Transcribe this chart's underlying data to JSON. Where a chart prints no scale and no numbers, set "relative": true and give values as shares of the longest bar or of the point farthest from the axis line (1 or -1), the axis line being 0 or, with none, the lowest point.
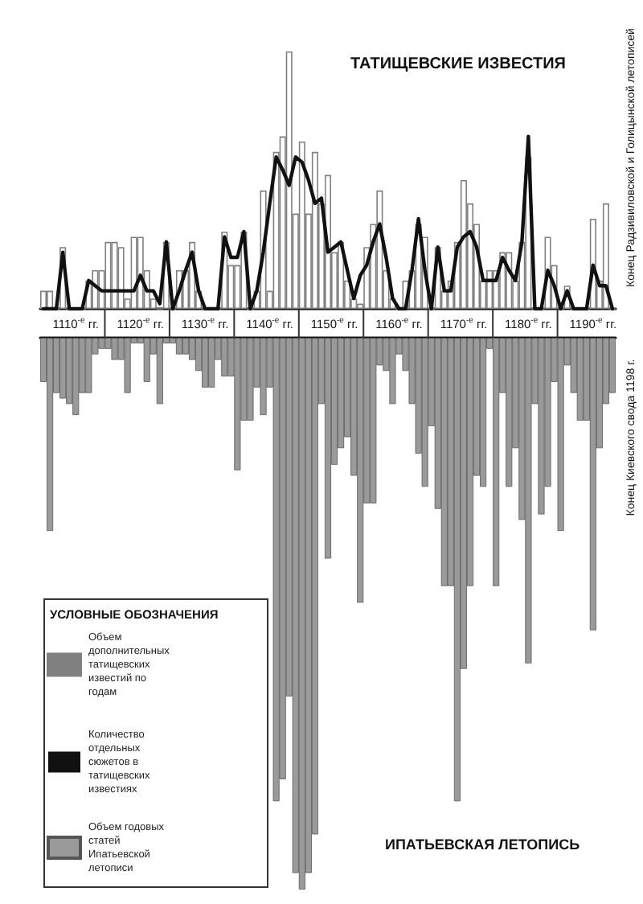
{
  "chart_data": [
    {
      "type": "bar",
      "relative": true,
      "categories": [
        null,
        null,
        null,
        null,
        null,
        "1110$^{-е}$ гг.",
        null,
        null,
        null,
        null,
        null,
        null,
        null,
        null,
        null,
        "1120$^{-е}$ гг.",
        null,
        null,
        null,
        null,
        null,
        null,
        null,
        null,
        null,
        "1130$^{-е}$ гг.",
        null,
        null,
        null,
        null,
        null,
        null,
        null,
        null,
        null,
        "1140$^{-е}$ гг.",
        null,
        null,
        null,
        null,
        null,
        null,
        null,
        null,
        null,
        "1150$^{-е}$ гг.",
        null,
        null,
        null,
        null,
        null,
        null,
        null,
        null,
        null,
        "1160$^{-е}$ гг.",
        null,
        null,
        null,
        null,
        null,
        null,
        null,
        null,
        null,
        "1170$^{-е}$ гг.",
        null,
        null,
        null,
        null,
        null,
        null,
        null,
        null,
        null,
        "1180$^{-е}$ гг.",
        null,
        null,
        null,
        null,
        null,
        null,
        null,
        null,
        null,
        "1190$^{-е}$ гг.",
        null,
        null,
        null
      ],
      "series": [
        {
          "name": "Объем дополнительных татищевских известий по годам",
          "color": "#808080",
          "values": [
            0.07,
            0.07,
            0,
            0.24,
            0,
            0,
            0,
            0.11,
            0.15,
            0.15,
            0.26,
            0.26,
            0.24,
            0.04,
            0.28,
            0.28,
            0.15,
            0.04,
            0,
            0.26,
            0,
            0.15,
            0.15,
            0.26,
            0.07,
            0,
            0,
            0,
            0.3,
            0.17,
            0.17,
            0.3,
            0,
            0.07,
            0.46,
            0.07,
            0.61,
            0.67,
            1,
            0.37,
            0.65,
            0.37,
            0.61,
            0.41,
            0.52,
            0.22,
            0.26,
            0.11,
            0.04,
            0.02,
            0.24,
            0.33,
            0.46,
            0.15,
            0.04,
            0,
            0.11,
            0.15,
            0.33,
            0.28,
            0,
            0.24,
            0.07,
            0.11,
            0.26,
            0.5,
            0.41,
            0.33,
            0.11,
            0.15,
            0.15,
            0.22,
            0.22,
            0.11,
            0.26,
            0.59,
            0,
            0,
            0.28,
            0.17,
            0,
            0.09,
            0,
            0,
            0,
            0.35,
            0.11,
            0.41,
            0
          ]
        },
        {
          "name": "Количество отдельных сюжетов в татищевских известиях",
          "type": "line",
          "color": "#111111",
          "values": [
            0,
            0,
            0,
            0.22,
            0,
            0,
            0,
            0.11,
            0.09,
            0.07,
            0.07,
            0.07,
            0.07,
            0.07,
            0.07,
            0.13,
            0.07,
            0.07,
            0.02,
            0.26,
            0,
            0.07,
            0.15,
            0.22,
            0.07,
            0,
            0,
            0,
            0.28,
            0.2,
            0.2,
            0.3,
            0,
            0.07,
            0.22,
            0.41,
            0.59,
            0.54,
            0.48,
            0.59,
            0.57,
            0.5,
            0.41,
            0.43,
            0.22,
            0.24,
            0.26,
            0.15,
            0.04,
            0.13,
            0.17,
            0.26,
            0.33,
            0.2,
            0.04,
            0,
            0,
            0.15,
            0.35,
            0.15,
            0,
            0.24,
            0.07,
            0.07,
            0.24,
            0.28,
            0.3,
            0.24,
            0.11,
            0.11,
            0.11,
            0.2,
            0.15,
            0.11,
            0.26,
            0.67,
            0,
            0,
            0.15,
            0.09,
            0,
            0.07,
            0,
            0,
            0,
            0.17,
            0.09,
            0.09,
            0
          ]
        }
      ],
      "marker": "none",
      "legend": "bottom left",
      "legend_title": "УСЛОВНЫЕ ОБОЗНАЧЕНИЯ",
      "annotations": [
        "ТАТИЩЕВСКИЕ ИЗВЕСТИЯ",
        "Конец Радзивиловской и Голицынской летописей"
      ]
    },
    {
      "type": "bar",
      "relative": true,
      "categories": [
        null,
        null,
        null,
        null,
        null,
        null,
        null,
        null,
        null,
        null,
        null,
        null,
        null,
        null,
        null,
        null,
        null,
        null,
        null,
        null,
        null,
        null,
        null,
        null,
        null,
        null,
        null,
        null,
        null,
        null,
        null,
        null,
        null,
        null,
        null,
        null,
        null,
        null,
        null,
        null,
        null,
        null,
        null,
        null,
        null,
        null,
        null,
        null,
        null,
        null,
        null,
        null,
        null,
        null,
        null,
        null,
        null,
        null,
        null,
        null,
        null,
        null,
        null,
        null,
        null,
        null,
        null,
        null,
        null,
        null,
        null,
        null,
        null,
        null,
        null,
        null,
        null,
        null,
        null,
        null,
        null,
        null,
        null,
        null,
        null,
        null,
        null,
        null,
        null
      ],
      "series": [
        {
          "name": "Объем годовых статей Ипатьевской летописи",
          "color": "#9a9a9a",
          "values": [
            -0.08,
            -0.35,
            -0.1,
            -0.11,
            -0.12,
            -0.14,
            -0.1,
            -0.1,
            -0.03,
            -0.02,
            -0.02,
            -0.04,
            -0.04,
            -0.1,
            -0.01,
            -0.01,
            -0.08,
            -0.03,
            -0.12,
            -0.01,
            -0.01,
            -0.03,
            -0.03,
            -0.04,
            -0.06,
            -0.09,
            -0.09,
            -0.04,
            -0.07,
            -0.07,
            -0.24,
            -0.15,
            -0.15,
            -0.09,
            -0.14,
            -0.09,
            -0.84,
            -0.8,
            -0.65,
            -0.97,
            -1,
            -0.97,
            -0.9,
            -0.12,
            -0.4,
            -0.23,
            -0.2,
            -0.18,
            -0.25,
            -0.48,
            -0.3,
            -0.3,
            -0.05,
            -0.06,
            -0.12,
            -0.03,
            -0.06,
            -0.12,
            -0.21,
            -0.27,
            -0.16,
            -0.31,
            -0.45,
            -0.45,
            -0.84,
            -0.6,
            -0.45,
            -0.25,
            -0.27,
            -0.02,
            -0.45,
            -0.1,
            -0.27,
            -0.2,
            -0.33,
            -0.59,
            -0.12,
            -0.32,
            -0.27,
            -0.08,
            -0.35,
            -0.05,
            -0.1,
            -0.15,
            -0.15,
            -0.53,
            -0.2,
            -0.12,
            -0.1
          ]
        }
      ],
      "legend": "bottom left",
      "annotations": [
        "ИПАТЬЕВСКАЯ ЛЕТОПИСЬ",
        "Конец Киевского свода 1198 г."
      ]
    }
  ]
}
